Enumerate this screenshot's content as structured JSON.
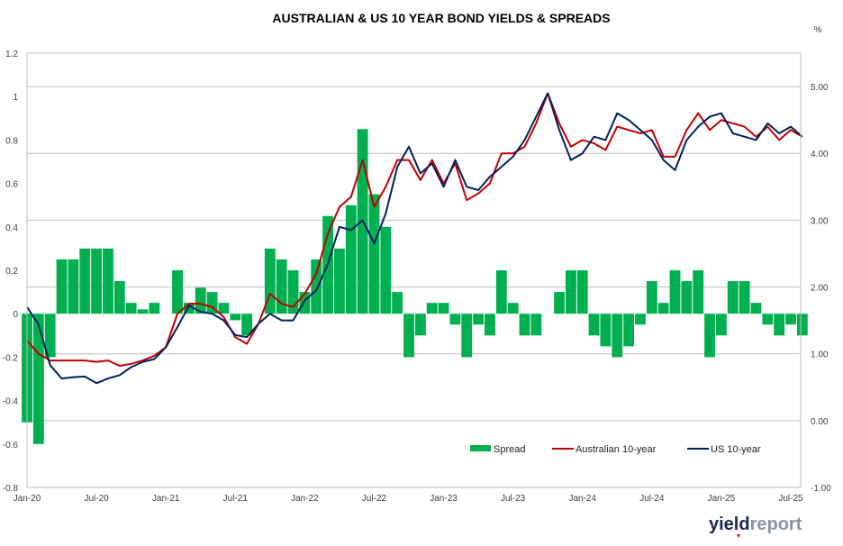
{
  "chart_data": {
    "type": "bar+line",
    "title": "AUSTRALIAN & US 10 YEAR BOND YIELDS & SPREADS",
    "right_unit": "%",
    "left_axis": {
      "range": [
        -0.8,
        1.2
      ],
      "ticks": [
        "-0.8",
        "-0.6",
        "-0.4",
        "-0.2",
        "0",
        "0.2",
        "0.4",
        "0.6",
        "0.8",
        "1",
        "1.2"
      ]
    },
    "right_axis": {
      "range": [
        -1.0,
        5.5
      ],
      "ticks": [
        "-1.00",
        "0.00",
        "1.00",
        "2.00",
        "3.00",
        "4.00",
        "5.00"
      ]
    },
    "x_tick_labels": [
      "Jan-20",
      "Jul-20",
      "Jan-21",
      "Jul-21",
      "Jan-22",
      "Jul-22",
      "Jan-23",
      "Jul-23",
      "Jan-24",
      "Jul-24",
      "Jan-25",
      "Jul-25"
    ],
    "x_start": "Jan-20",
    "frequency": "monthly",
    "legend": {
      "placement": "bottom-right",
      "entries": [
        "Spread",
        "Australian 10-year",
        "US 10-year"
      ]
    },
    "series": [
      {
        "name": "Spread",
        "type": "bar",
        "axis": "left",
        "color": "#00b050",
        "values": [
          -0.5,
          -0.6,
          -0.2,
          0.25,
          0.25,
          0.3,
          0.3,
          0.3,
          0.15,
          0.05,
          0.02,
          0.05,
          0.0,
          0.2,
          0.05,
          0.12,
          0.1,
          0.05,
          -0.03,
          -0.1,
          0.0,
          0.3,
          0.25,
          0.2,
          0.1,
          0.25,
          0.45,
          0.3,
          0.5,
          0.85,
          0.55,
          0.4,
          0.1,
          -0.2,
          -0.1,
          0.05,
          0.05,
          -0.05,
          -0.2,
          -0.05,
          -0.1,
          0.2,
          0.05,
          -0.1,
          -0.1,
          0.0,
          0.1,
          0.2,
          0.2,
          -0.1,
          -0.15,
          -0.2,
          -0.15,
          -0.05,
          0.15,
          0.05,
          0.2,
          0.15,
          0.2,
          -0.2,
          -0.1,
          0.15,
          0.15,
          0.05,
          -0.05,
          -0.1,
          -0.05,
          -0.1
        ]
      },
      {
        "name": "Australian 10-year",
        "type": "line",
        "axis": "right",
        "color": "#c00000",
        "values": [
          1.2,
          1.0,
          0.9,
          0.9,
          0.9,
          0.9,
          0.88,
          0.9,
          0.82,
          0.85,
          0.9,
          0.97,
          1.1,
          1.6,
          1.75,
          1.75,
          1.7,
          1.55,
          1.25,
          1.15,
          1.45,
          1.9,
          1.75,
          1.7,
          1.9,
          2.2,
          2.8,
          3.2,
          3.35,
          3.9,
          3.2,
          3.5,
          3.9,
          3.9,
          3.6,
          3.9,
          3.55,
          3.85,
          3.3,
          3.4,
          3.55,
          4.0,
          4.0,
          4.1,
          4.45,
          4.9,
          4.45,
          4.1,
          4.2,
          4.15,
          4.05,
          4.4,
          4.35,
          4.3,
          4.35,
          3.95,
          3.95,
          4.35,
          4.6,
          4.35,
          4.5,
          4.45,
          4.4,
          4.25,
          4.4,
          4.2,
          4.35,
          4.25
        ]
      },
      {
        "name": "US 10-year",
        "type": "line",
        "axis": "right",
        "color": "#002060",
        "values": [
          1.7,
          1.44,
          0.83,
          0.63,
          0.65,
          0.66,
          0.56,
          0.63,
          0.68,
          0.8,
          0.88,
          0.92,
          1.1,
          1.4,
          1.72,
          1.63,
          1.6,
          1.5,
          1.28,
          1.25,
          1.45,
          1.6,
          1.5,
          1.5,
          1.8,
          1.95,
          2.35,
          2.9,
          2.85,
          3.0,
          2.65,
          3.1,
          3.8,
          4.1,
          3.7,
          3.85,
          3.5,
          3.9,
          3.5,
          3.45,
          3.65,
          3.8,
          3.95,
          4.2,
          4.55,
          4.9,
          4.35,
          3.9,
          4.0,
          4.25,
          4.2,
          4.6,
          4.5,
          4.35,
          4.2,
          3.9,
          3.75,
          4.2,
          4.4,
          4.55,
          4.6,
          4.3,
          4.25,
          4.2,
          4.45,
          4.3,
          4.4,
          4.25
        ]
      }
    ]
  },
  "logo": {
    "part1": "yield",
    "part2": "report"
  }
}
